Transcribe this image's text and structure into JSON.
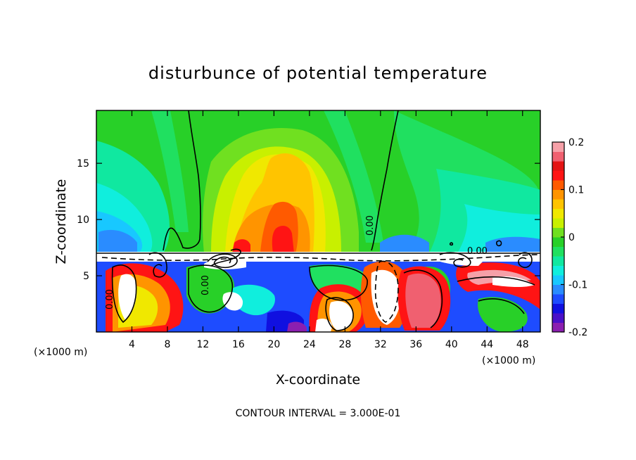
{
  "chart_data": {
    "type": "heatmap",
    "title": "disturbunce of potential temperature",
    "xlabel": "X-coordinate",
    "ylabel": "Z-coordinate",
    "x_unit": "(×1000 m)",
    "y_unit": "(×1000 m)",
    "x_ticks": [
      4,
      8,
      12,
      16,
      20,
      24,
      28,
      32,
      36,
      40,
      44,
      48
    ],
    "y_ticks": [
      5,
      10,
      15
    ],
    "xlim": [
      0,
      50
    ],
    "ylim": [
      0,
      19.7
    ],
    "colorbar": {
      "ticks": [
        0.2,
        0.1,
        0,
        -0.1,
        -0.2
      ],
      "tick_labels": [
        "0.2",
        "0.1",
        "0",
        "-0.1",
        "-0.2"
      ],
      "range": [
        -0.2,
        0.2
      ],
      "colors": [
        "#8b1fb0",
        "#4a10c8",
        "#1010e0",
        "#1e4cff",
        "#2a8cff",
        "#18c8ff",
        "#10eedd",
        "#10e8a0",
        "#20e060",
        "#28d028",
        "#70e020",
        "#c8f000",
        "#f0e800",
        "#ffc400",
        "#ff9400",
        "#ff5a00",
        "#ff1414",
        "#e41414",
        "#f06070",
        "#f6a0a8"
      ]
    },
    "contour_interval_text": "CONTOUR INTERVAL = 3.000E-01",
    "contour_labels": [
      "0.00",
      "0.00",
      "0.00",
      "0.00"
    ]
  }
}
